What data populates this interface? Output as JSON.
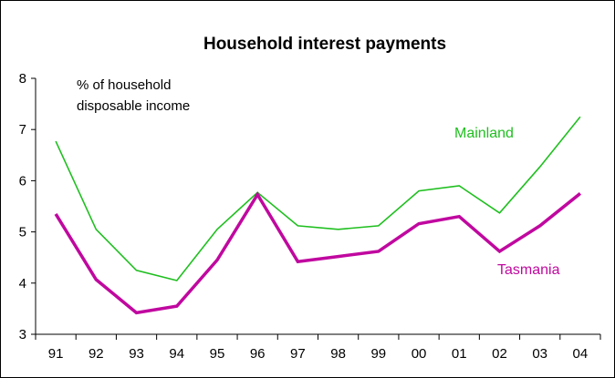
{
  "chart_data": {
    "type": "line",
    "title": "Household interest payments",
    "ylabel_line1": "% of household",
    "ylabel_line2": "disposable income",
    "categories": [
      "91",
      "92",
      "93",
      "94",
      "95",
      "96",
      "97",
      "98",
      "99",
      "00",
      "01",
      "02",
      "03",
      "04"
    ],
    "yticks": [
      "3",
      "4",
      "5",
      "6",
      "7",
      "8"
    ],
    "ylim": [
      3,
      8
    ],
    "grid": false,
    "series": [
      {
        "name": "Mainland",
        "color": "#1fbf1f",
        "values": [
          6.77,
          5.05,
          4.25,
          4.05,
          5.05,
          5.77,
          5.12,
          5.05,
          5.12,
          5.8,
          5.9,
          5.37,
          6.27,
          7.25
        ]
      },
      {
        "name": "Tasmania",
        "color": "#c0089f",
        "values": [
          5.35,
          4.07,
          3.42,
          3.55,
          4.45,
          5.73,
          4.42,
          4.52,
          4.62,
          5.16,
          5.3,
          4.62,
          5.12,
          5.75
        ]
      }
    ]
  }
}
